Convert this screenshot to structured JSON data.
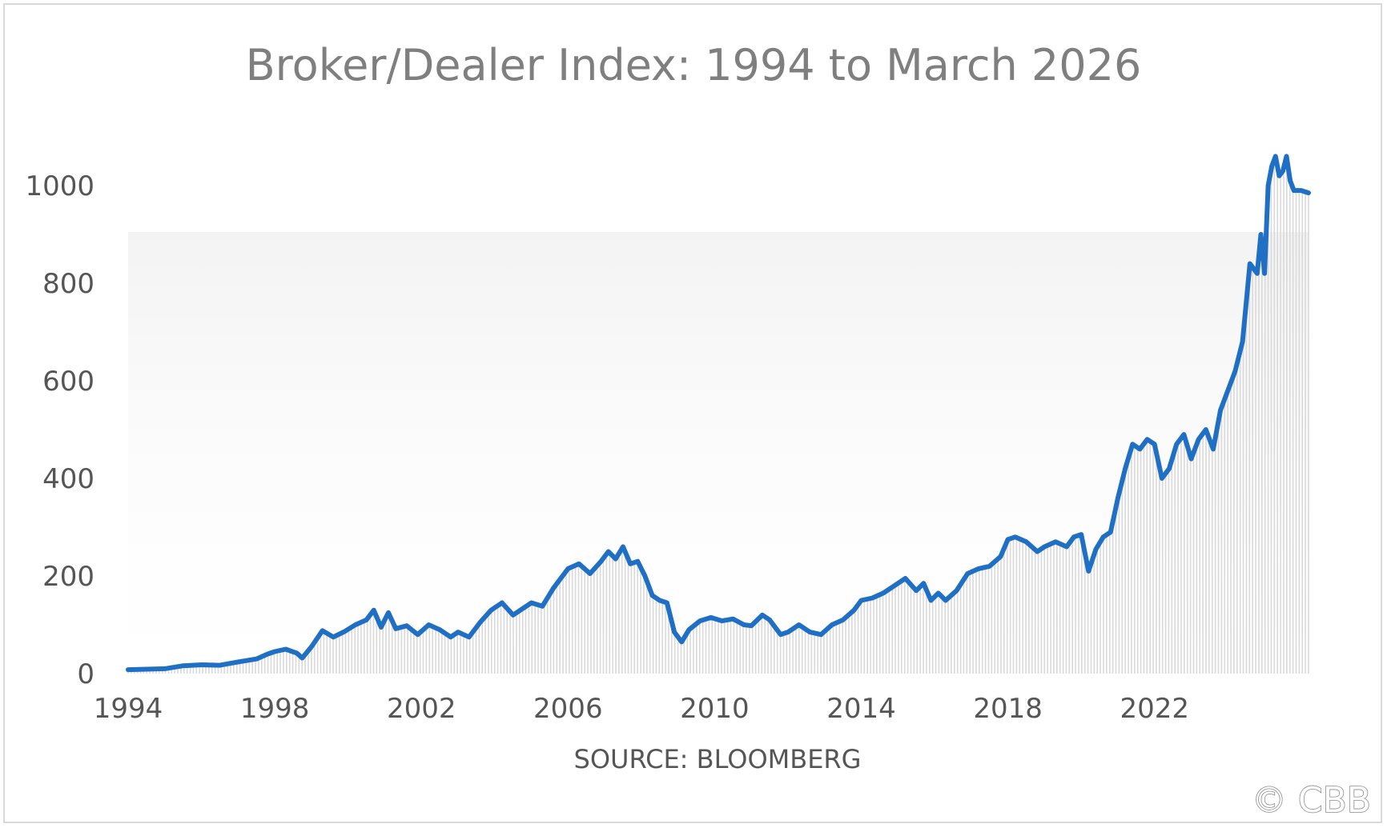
{
  "chart_data": {
    "type": "area",
    "title": "Broker/Dealer Index: 1994 to March 2026",
    "xlabel": "SOURCE: BLOOMBERG",
    "ylabel": "",
    "ylim": [
      0,
      1000
    ],
    "yticks": [
      "0",
      "200",
      "400",
      "600",
      "800",
      "1000"
    ],
    "xticks": [
      "1994",
      "1998",
      "2002",
      "2006",
      "2010",
      "2014",
      "2018",
      "2022"
    ],
    "xlim": [
      1994.0,
      2026.2
    ],
    "grid": false,
    "legend": "none",
    "line_color": "#1f6fc5",
    "fill_color": "#d9d9d9",
    "series": [
      {
        "x": [
          1994.0,
          1994.5,
          1995.0,
          1995.5,
          1996.0,
          1996.5,
          1997.0,
          1997.5,
          1997.8,
          1998.0,
          1998.3,
          1998.6,
          1998.75,
          1999.0,
          1999.3,
          1999.6,
          1999.9,
          2000.2,
          2000.5,
          2000.7,
          2000.9,
          2001.1,
          2001.3,
          2001.6,
          2001.9,
          2002.2,
          2002.5,
          2002.8,
          2003.0,
          2003.3,
          2003.6,
          2003.9,
          2004.2,
          2004.5,
          2004.8,
          2005.0,
          2005.3,
          2005.6,
          2005.8,
          2006.0,
          2006.3,
          2006.6,
          2006.9,
          2007.1,
          2007.3,
          2007.5,
          2007.7,
          2007.9,
          2008.1,
          2008.3,
          2008.5,
          2008.7,
          2008.9,
          2009.1,
          2009.3,
          2009.6,
          2009.9,
          2010.2,
          2010.5,
          2010.8,
          2011.0,
          2011.3,
          2011.5,
          2011.8,
          2012.0,
          2012.3,
          2012.6,
          2012.9,
          2013.2,
          2013.5,
          2013.8,
          2014.0,
          2014.3,
          2014.6,
          2014.9,
          2015.2,
          2015.5,
          2015.7,
          2015.9,
          2016.1,
          2016.3,
          2016.6,
          2016.9,
          2017.2,
          2017.5,
          2017.8,
          2018.0,
          2018.2,
          2018.5,
          2018.8,
          2019.0,
          2019.3,
          2019.6,
          2019.8,
          2020.0,
          2020.2,
          2020.4,
          2020.6,
          2020.8,
          2021.0,
          2021.2,
          2021.4,
          2021.6,
          2021.8,
          2022.0,
          2022.2,
          2022.4,
          2022.6,
          2022.8,
          2023.0,
          2023.2,
          2023.4,
          2023.6,
          2023.8,
          2024.0,
          2024.2,
          2024.4,
          2024.6,
          2024.8,
          2024.9,
          2025.0,
          2025.1,
          2025.2,
          2025.3,
          2025.4,
          2025.5,
          2025.6,
          2025.7,
          2025.8,
          2025.9,
          2026.0,
          2026.2
        ],
        "values": [
          8,
          9,
          10,
          16,
          18,
          17,
          24,
          30,
          40,
          45,
          50,
          42,
          32,
          55,
          88,
          75,
          86,
          100,
          110,
          130,
          95,
          125,
          92,
          98,
          80,
          100,
          90,
          75,
          85,
          75,
          105,
          130,
          145,
          120,
          135,
          145,
          138,
          175,
          195,
          215,
          225,
          205,
          230,
          250,
          235,
          260,
          225,
          230,
          200,
          160,
          150,
          145,
          85,
          65,
          90,
          108,
          115,
          108,
          112,
          100,
          98,
          120,
          110,
          80,
          85,
          100,
          85,
          80,
          100,
          110,
          130,
          150,
          155,
          165,
          180,
          195,
          170,
          185,
          150,
          165,
          150,
          170,
          205,
          215,
          220,
          240,
          275,
          280,
          270,
          250,
          260,
          270,
          260,
          280,
          285,
          210,
          255,
          280,
          290,
          360,
          420,
          470,
          460,
          480,
          470,
          400,
          420,
          470,
          490,
          440,
          480,
          500,
          460,
          540,
          580,
          620,
          680,
          840,
          820,
          900,
          820,
          1000,
          1040,
          1060,
          1020,
          1030,
          1060,
          1010,
          990,
          990,
          990,
          985
        ]
      }
    ]
  },
  "watermark": "© CBB"
}
